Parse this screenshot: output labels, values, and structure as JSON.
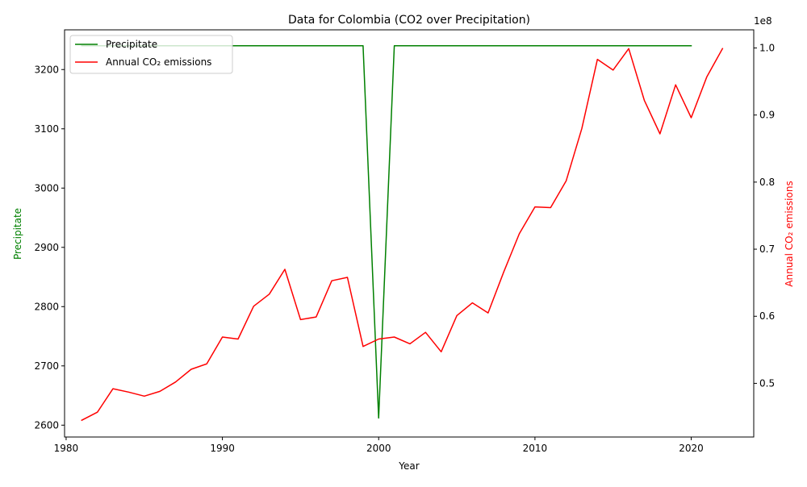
{
  "chart_data": {
    "type": "line",
    "title": "Data for Colombia (CO2 over Precipitation)",
    "xlabel": "Year",
    "ylabel_left": "Precipitate",
    "ylabel_right": "Annual CO₂ emissions",
    "right_axis_multiplier": "1e8",
    "xlim": [
      1979.9,
      2024.0
    ],
    "ylim_left": [
      2580,
      3267
    ],
    "ylim_right": [
      0.42,
      1.027
    ],
    "x_ticks": [
      1980,
      1990,
      2000,
      2010,
      2020
    ],
    "y_ticks_left": [
      2600,
      2700,
      2800,
      2900,
      3000,
      3100,
      3200
    ],
    "y_ticks_right": [
      0.5,
      0.6,
      0.7,
      0.8,
      0.9,
      1.0
    ],
    "legend_position": "top-left",
    "grid": false,
    "series": [
      {
        "name": "Precipitate",
        "color": "#008000",
        "axis": "left",
        "x": [
          1981,
          1982,
          1983,
          1984,
          1985,
          1986,
          1987,
          1988,
          1989,
          1990,
          1991,
          1992,
          1993,
          1994,
          1995,
          1996,
          1997,
          1998,
          1999,
          2000,
          2001,
          2002,
          2003,
          2004,
          2005,
          2006,
          2007,
          2008,
          2009,
          2010,
          2011,
          2012,
          2013,
          2014,
          2015,
          2016,
          2017,
          2018,
          2019,
          2020
        ],
        "values": [
          3240,
          3240,
          3240,
          3240,
          3240,
          3240,
          3240,
          3240,
          3240,
          3240,
          3240,
          3240,
          3240,
          3240,
          3240,
          3240,
          3240,
          3240,
          3240,
          2612,
          3240,
          3240,
          3240,
          3240,
          3240,
          3240,
          3240,
          3240,
          3240,
          3240,
          3240,
          3240,
          3240,
          3240,
          3240,
          3240,
          3240,
          3240,
          3240,
          3240
        ]
      },
      {
        "name": "Annual CO₂ emissions",
        "color": "#ff0000",
        "axis": "right",
        "x": [
          1981,
          1982,
          1983,
          1984,
          1985,
          1986,
          1987,
          1988,
          1989,
          1990,
          1991,
          1992,
          1993,
          1994,
          1995,
          1996,
          1997,
          1998,
          1999,
          2000,
          2001,
          2002,
          2003,
          2004,
          2005,
          2006,
          2007,
          2008,
          2009,
          2010,
          2011,
          2012,
          2013,
          2014,
          2015,
          2016,
          2017,
          2018,
          2019,
          2020,
          2021,
          2022
        ],
        "values": [
          0.445,
          0.457,
          0.492,
          0.487,
          0.481,
          0.488,
          0.502,
          0.521,
          0.529,
          0.569,
          0.566,
          0.615,
          0.633,
          0.67,
          0.595,
          0.599,
          0.653,
          0.658,
          0.555,
          0.566,
          0.569,
          0.559,
          0.576,
          0.547,
          0.601,
          0.62,
          0.605,
          0.666,
          0.723,
          0.763,
          0.762,
          0.802,
          0.88,
          0.983,
          0.967,
          0.999,
          0.922,
          0.872,
          0.945,
          0.896,
          0.957,
          0.999
        ]
      }
    ]
  }
}
